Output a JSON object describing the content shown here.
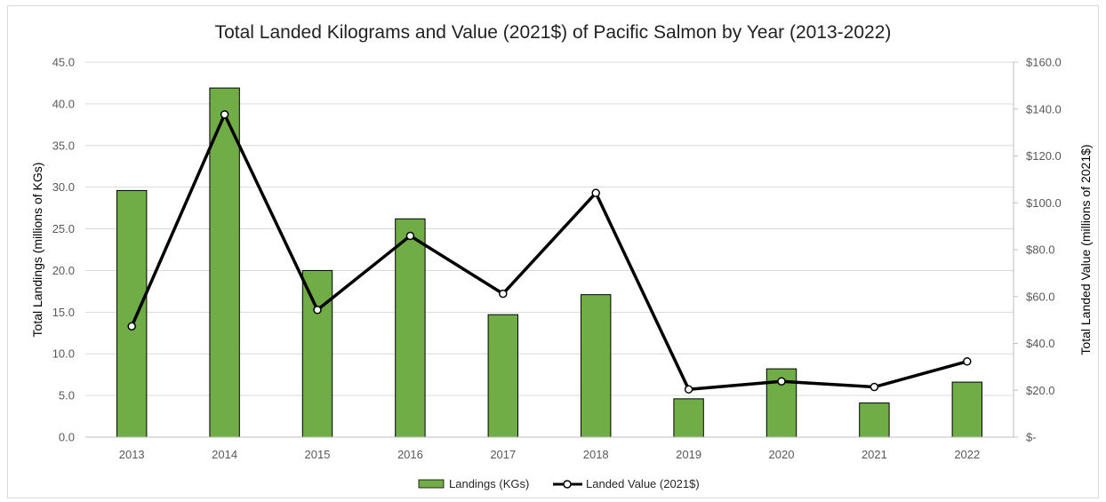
{
  "chart_data": {
    "type": "bar+line",
    "title": "Total Landed Kilograms and Value (2021$) of Pacific Salmon by Year (2013-2022)",
    "categories": [
      "2013",
      "2014",
      "2015",
      "2016",
      "2017",
      "2018",
      "2019",
      "2020",
      "2021",
      "2022"
    ],
    "series": [
      {
        "name": "Landings (KGs)",
        "type": "bar",
        "axis": "left",
        "color": "#70ad47",
        "values": [
          29.6,
          41.9,
          20.0,
          26.2,
          14.7,
          17.1,
          4.6,
          8.2,
          4.1,
          6.6
        ]
      },
      {
        "name": "Landed Value (2021$)",
        "type": "line",
        "axis": "right",
        "color": "#000000",
        "values": [
          47.3,
          137.7,
          54.3,
          85.9,
          61.2,
          104.2,
          20.4,
          23.8,
          21.4,
          32.3
        ]
      }
    ],
    "ylabel_left": "Total Landings (millions of KGs)",
    "ylabel_right": "Total Landed Value (millions of 2021$)",
    "ylim_left": [
      0,
      45
    ],
    "ylim_right": [
      0,
      160
    ],
    "yticks_left": [
      "0.0",
      "5.0",
      "10.0",
      "15.0",
      "20.0",
      "25.0",
      "30.0",
      "35.0",
      "40.0",
      "45.0"
    ],
    "yticks_right": [
      "$-",
      "$20.0",
      "$40.0",
      "$60.0",
      "$80.0",
      "$100.0",
      "$120.0",
      "$140.0",
      "$160.0"
    ],
    "grid": true,
    "legend_position": "bottom"
  }
}
